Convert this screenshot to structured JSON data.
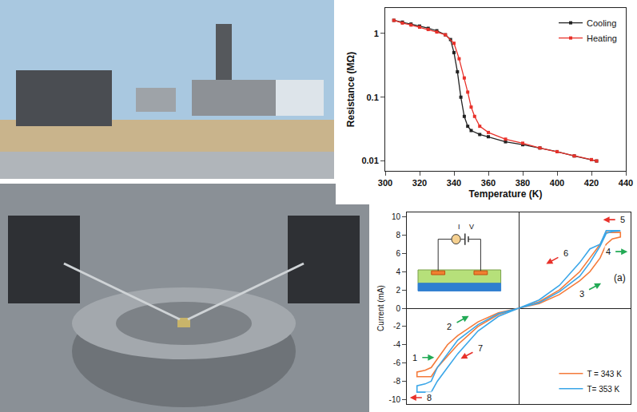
{
  "chart_data": [
    {
      "type": "line",
      "x_label": "Temperature (K)",
      "y_label": "Resistance (MΩ)",
      "log": "y",
      "xlim": [
        300,
        440
      ],
      "xticks": [
        300,
        320,
        340,
        360,
        380,
        400,
        420,
        440
      ],
      "ylim": [
        0.007,
        2.5
      ],
      "yticks": [
        0.01,
        0.1,
        1
      ],
      "legend": "upper right",
      "series": [
        {
          "name": "Cooling",
          "color": "#222222",
          "marker": "square",
          "x": [
            305,
            310,
            315,
            320,
            325,
            330,
            335,
            338,
            340,
            342,
            344,
            346,
            348,
            350,
            355,
            360,
            370,
            380,
            390,
            400,
            410,
            420,
            423
          ],
          "values": [
            1.6,
            1.5,
            1.4,
            1.3,
            1.2,
            1.1,
            0.95,
            0.8,
            0.5,
            0.25,
            0.1,
            0.05,
            0.035,
            0.03,
            0.026,
            0.024,
            0.02,
            0.018,
            0.016,
            0.014,
            0.012,
            0.0105,
            0.01
          ]
        },
        {
          "name": "Heating",
          "color": "#e8312a",
          "marker": "square",
          "x": [
            305,
            310,
            315,
            320,
            325,
            330,
            335,
            340,
            343,
            346,
            348,
            350,
            352,
            355,
            360,
            370,
            380,
            390,
            400,
            410,
            420,
            423
          ],
          "values": [
            1.6,
            1.45,
            1.35,
            1.25,
            1.15,
            1.05,
            0.95,
            0.7,
            0.4,
            0.2,
            0.12,
            0.07,
            0.05,
            0.035,
            0.028,
            0.022,
            0.019,
            0.016,
            0.014,
            0.012,
            0.0105,
            0.01
          ]
        }
      ]
    },
    {
      "type": "line",
      "y_label": "Current (mA)",
      "xlim": [
        -5.5,
        5.5
      ],
      "ylim": [
        -10.5,
        10.5
      ],
      "yticks": [
        -10,
        -8,
        -6,
        -4,
        -2,
        0,
        2,
        4,
        6,
        8,
        10
      ],
      "tick_labels": "y",
      "legend": "lower right",
      "panel_label": "(a)",
      "inset_labels": [
        "I",
        "V"
      ],
      "series": [
        {
          "name": "T = 343 K",
          "color": "#f47a3a",
          "x": [
            0,
            1,
            2,
            3,
            3.5,
            4,
            4.3,
            4.6,
            5,
            5,
            4.3,
            4,
            3.5,
            3,
            2,
            1,
            0,
            -1,
            -2,
            -3,
            -3.5,
            -4,
            -4.3,
            -4.6,
            -5,
            -5,
            -4.3,
            -4,
            -3.5,
            -3,
            -2,
            -1,
            0
          ],
          "values": [
            0,
            0.5,
            1.5,
            3,
            4,
            5.5,
            7,
            7.6,
            7.8,
            8.3,
            8.3,
            7,
            5.5,
            4,
            2,
            0.7,
            0,
            -0.5,
            -1.5,
            -3,
            -4,
            -5.5,
            -6.5,
            -6.8,
            -7,
            -7.5,
            -7.5,
            -6.5,
            -5.2,
            -4,
            -2,
            -0.7,
            0
          ]
        },
        {
          "name": "T= 353 K",
          "color": "#3aa6e8",
          "x": [
            0,
            1,
            2,
            3,
            3.5,
            4,
            4.3,
            4.6,
            5,
            5,
            4.3,
            4,
            3.5,
            3,
            2,
            1,
            0,
            -1,
            -2,
            -3,
            -3.5,
            -4,
            -4.3,
            -4.6,
            -5,
            -5,
            -4.3,
            -4,
            -3.5,
            -3,
            -2,
            -1,
            0
          ],
          "values": [
            0,
            0.6,
            1.8,
            3.5,
            5,
            6.8,
            8.2,
            8.4,
            8.5,
            8.5,
            8.5,
            7,
            6.5,
            5,
            2.5,
            0.9,
            0,
            -0.6,
            -1.8,
            -3.5,
            -5,
            -6.5,
            -8,
            -8.3,
            -8.5,
            -9.2,
            -9.2,
            -8,
            -6.5,
            -5,
            -2.5,
            -0.9,
            0
          ]
        }
      ],
      "annotations": [
        {
          "text": "1",
          "x": -5.1,
          "y": -5.4,
          "color": "#22aa55"
        },
        {
          "text": "2",
          "x": -3.4,
          "y": -2.0,
          "color": "#22aa55"
        },
        {
          "text": "3",
          "x": 3.1,
          "y": 1.6,
          "color": "#22aa55"
        },
        {
          "text": "4",
          "x": 4.4,
          "y": 6.2,
          "color": "#22aa55"
        },
        {
          "text": "5",
          "x": 5.1,
          "y": 9.7,
          "color": "#e8312a"
        },
        {
          "text": "6",
          "x": 2.3,
          "y": 6.0,
          "color": "#e8312a"
        },
        {
          "text": "7",
          "x": -1.9,
          "y": -4.4,
          "color": "#e8312a"
        },
        {
          "text": "8",
          "x": -4.4,
          "y": -9.8,
          "color": "#e8312a"
        }
      ]
    }
  ]
}
